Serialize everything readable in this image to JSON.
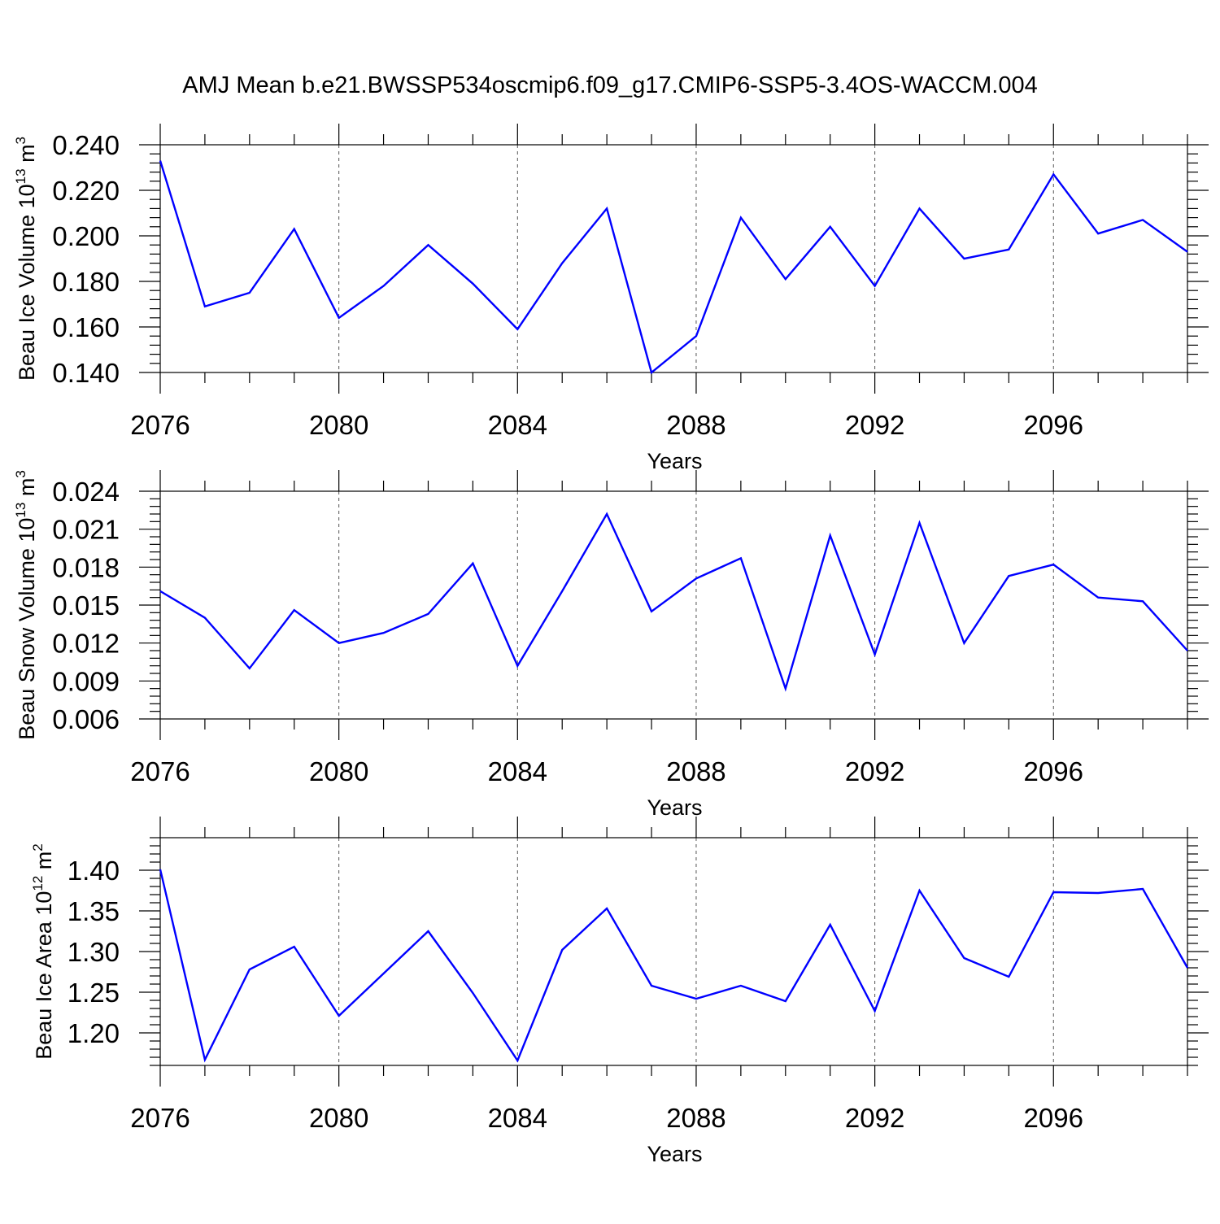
{
  "title": "AMJ Mean b.e21.BWSSP534oscmip6.f09_g17.CMIP6-SSP5-3.4OS-WACCM.004",
  "colors": {
    "line": "#0000ff",
    "axis": "#000000",
    "grid": "#555555"
  },
  "chart_data": [
    {
      "type": "line",
      "title": "",
      "xlabel": "Years",
      "ylabel": {
        "base": "Beau Ice Volume 10",
        "exponent": "13",
        "unit": " m",
        "unit_exponent": "3"
      },
      "xlim": [
        2076,
        2099
      ],
      "ylim": [
        0.14,
        0.24
      ],
      "x_ticks": [
        "2076",
        "2080",
        "2084",
        "2088",
        "2092",
        "2096"
      ],
      "y_ticks": [
        "0.140",
        "0.160",
        "0.180",
        "0.200",
        "0.220",
        "0.240"
      ],
      "x_grid": "dashed",
      "x": [
        2076,
        2077,
        2078,
        2079,
        2080,
        2081,
        2082,
        2083,
        2084,
        2085,
        2086,
        2087,
        2088,
        2089,
        2090,
        2091,
        2092,
        2093,
        2094,
        2095,
        2096,
        2097,
        2098,
        2099
      ],
      "series": [
        {
          "values": [
            0.233,
            0.169,
            0.175,
            0.203,
            0.164,
            0.178,
            0.196,
            0.179,
            0.159,
            0.188,
            0.212,
            0.14,
            0.156,
            0.208,
            0.181,
            0.204,
            0.178,
            0.212,
            0.19,
            0.194,
            0.227,
            0.201,
            0.207,
            0.193
          ]
        }
      ]
    },
    {
      "type": "line",
      "title": "",
      "xlabel": "Years",
      "ylabel": {
        "base": "Beau Snow Volume 10",
        "exponent": "13",
        "unit": " m",
        "unit_exponent": "3"
      },
      "xlim": [
        2076,
        2099
      ],
      "ylim": [
        0.006,
        0.024
      ],
      "x_ticks": [
        "2076",
        "2080",
        "2084",
        "2088",
        "2092",
        "2096"
      ],
      "y_ticks": [
        "0.006",
        "0.009",
        "0.012",
        "0.015",
        "0.018",
        "0.021",
        "0.024"
      ],
      "x_grid": "dashed",
      "x": [
        2076,
        2077,
        2078,
        2079,
        2080,
        2081,
        2082,
        2083,
        2084,
        2085,
        2086,
        2087,
        2088,
        2089,
        2090,
        2091,
        2092,
        2093,
        2094,
        2095,
        2096,
        2097,
        2098,
        2099
      ],
      "series": [
        {
          "values": [
            0.0161,
            0.014,
            0.01,
            0.0146,
            0.012,
            0.0128,
            0.0143,
            0.0183,
            0.0102,
            0.0161,
            0.0222,
            0.0145,
            0.0171,
            0.0187,
            0.0084,
            0.0205,
            0.0111,
            0.0215,
            0.012,
            0.0173,
            0.0182,
            0.0156,
            0.0153,
            0.0114
          ]
        }
      ]
    },
    {
      "type": "line",
      "title": "",
      "xlabel": "Years",
      "ylabel": {
        "base": "Beau Ice Area 10",
        "exponent": "12",
        "unit": " m",
        "unit_exponent": "2"
      },
      "xlim": [
        2076,
        2099
      ],
      "ylim": [
        1.16,
        1.44
      ],
      "x_ticks": [
        "2076",
        "2080",
        "2084",
        "2088",
        "2092",
        "2096"
      ],
      "y_ticks": [
        "1.20",
        "1.25",
        "1.30",
        "1.35",
        "1.40"
      ],
      "x_grid": "dashed",
      "x": [
        2076,
        2077,
        2078,
        2079,
        2080,
        2081,
        2082,
        2083,
        2084,
        2085,
        2086,
        2087,
        2088,
        2089,
        2090,
        2091,
        2092,
        2093,
        2094,
        2095,
        2096,
        2097,
        2098,
        2099
      ],
      "series": [
        {
          "values": [
            1.401,
            1.167,
            1.278,
            1.306,
            1.221,
            1.273,
            1.325,
            1.249,
            1.166,
            1.302,
            1.353,
            1.258,
            1.242,
            1.258,
            1.239,
            1.333,
            1.227,
            1.375,
            1.292,
            1.269,
            1.373,
            1.372,
            1.377,
            1.28
          ]
        }
      ]
    }
  ]
}
